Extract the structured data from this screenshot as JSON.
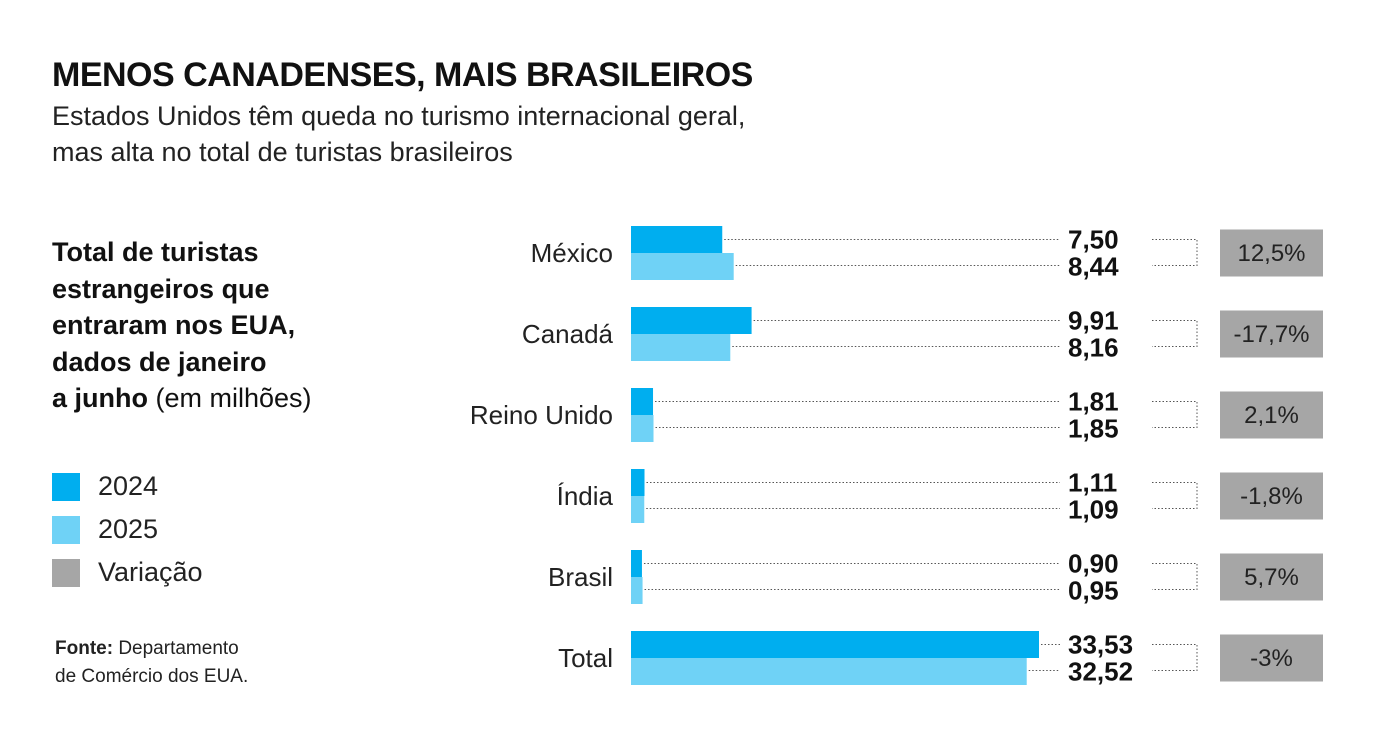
{
  "header": {
    "title": "MENOS CANADENSES, MAIS BRASILEIROS",
    "subtitle_line1": "Estados Unidos têm queda no turismo internacional geral,",
    "subtitle_line2": "mas alta no total de turistas brasileiros"
  },
  "description": {
    "line1": "Total de turistas",
    "line2": "estrangeiros que",
    "line3": "entraram nos EUA,",
    "line4": "dados de janeiro",
    "line5_bold": "a junho",
    "line5_normal": " (em milhões)"
  },
  "legend": [
    {
      "label": "2024",
      "color": "#00aeef"
    },
    {
      "label": "2025",
      "color": "#6fd2f6"
    },
    {
      "label": "Variação",
      "color": "#a6a6a6"
    }
  ],
  "source": {
    "bold": "Fonte:",
    "line1_rest": " Departamento",
    "line2": "de Comércio dos EUA."
  },
  "chart_data": {
    "type": "bar",
    "orientation": "horizontal",
    "categories": [
      "México",
      "Canadá",
      "Reino Unido",
      "Índia",
      "Brasil",
      "Total"
    ],
    "series": [
      {
        "name": "2024",
        "values": [
          7.5,
          9.91,
          1.81,
          1.11,
          0.9,
          33.53
        ],
        "labels": [
          "7,50",
          "9,91",
          "1,81",
          "1,11",
          "0,90",
          "33,53"
        ],
        "color": "#00aeef"
      },
      {
        "name": "2025",
        "values": [
          8.44,
          8.16,
          1.85,
          1.09,
          0.95,
          32.52
        ],
        "labels": [
          "8,44",
          "8,16",
          "1,85",
          "1,09",
          "0,95",
          "32,52"
        ],
        "color": "#6fd2f6"
      }
    ],
    "variation": [
      "12,5%",
      "-17,7%",
      "2,1%",
      "-1,8%",
      "5,7%",
      "-3%"
    ],
    "variation_color": "#a6a6a6",
    "xlim": [
      0,
      33.53
    ]
  }
}
